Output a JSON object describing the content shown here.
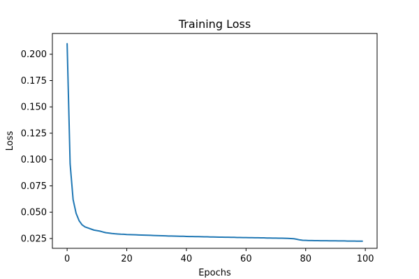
{
  "chart_data": {
    "type": "line",
    "title": "Training Loss",
    "xlabel": "Epochs",
    "ylabel": "Loss",
    "xlim": [
      -4.95,
      103.95
    ],
    "ylim": [
      0.0157,
      0.2197
    ],
    "xticks": [
      0,
      20,
      40,
      60,
      80,
      100
    ],
    "yticks": [
      0.025,
      0.05,
      0.075,
      0.1,
      0.125,
      0.15,
      0.175,
      0.2
    ],
    "ytick_labels": [
      "0.025",
      "0.050",
      "0.075",
      "0.100",
      "0.125",
      "0.150",
      "0.175",
      "0.200"
    ],
    "grid": false,
    "series": [
      {
        "color": "#1f77b4",
        "x": [
          0,
          1,
          2,
          3,
          4,
          5,
          6,
          7,
          8,
          9,
          10,
          11,
          12,
          13,
          14,
          15,
          16,
          17,
          18,
          19,
          20,
          21,
          22,
          23,
          24,
          25,
          26,
          27,
          28,
          29,
          30,
          31,
          32,
          33,
          34,
          35,
          36,
          37,
          38,
          39,
          40,
          41,
          42,
          43,
          44,
          45,
          46,
          47,
          48,
          49,
          50,
          51,
          52,
          53,
          54,
          55,
          56,
          57,
          58,
          59,
          60,
          61,
          62,
          63,
          64,
          65,
          66,
          67,
          68,
          69,
          70,
          71,
          72,
          73,
          74,
          75,
          76,
          77,
          78,
          79,
          80,
          81,
          82,
          83,
          84,
          85,
          86,
          87,
          88,
          89,
          90,
          91,
          92,
          93,
          94,
          95,
          96,
          97,
          98,
          99
        ],
        "values": [
          0.21,
          0.096,
          0.062,
          0.049,
          0.042,
          0.038,
          0.036,
          0.035,
          0.034,
          0.033,
          0.0325,
          0.032,
          0.0312,
          0.0305,
          0.0302,
          0.0298,
          0.0295,
          0.0293,
          0.0291,
          0.029,
          0.0288,
          0.0287,
          0.0286,
          0.0285,
          0.0284,
          0.0283,
          0.0282,
          0.0281,
          0.028,
          0.0279,
          0.0278,
          0.0277,
          0.0276,
          0.0275,
          0.0274,
          0.0274,
          0.0273,
          0.0272,
          0.0271,
          0.0271,
          0.027,
          0.0269,
          0.0269,
          0.0268,
          0.0268,
          0.0267,
          0.0266,
          0.0266,
          0.0265,
          0.0265,
          0.0264,
          0.0263,
          0.0263,
          0.0262,
          0.0262,
          0.0261,
          0.0261,
          0.026,
          0.026,
          0.0259,
          0.0259,
          0.0258,
          0.0258,
          0.0257,
          0.0257,
          0.0256,
          0.0256,
          0.0255,
          0.0255,
          0.0254,
          0.0254,
          0.0253,
          0.0253,
          0.0252,
          0.0251,
          0.025,
          0.0248,
          0.0243,
          0.0237,
          0.0233,
          0.0232,
          0.0231,
          0.0231,
          0.023,
          0.023,
          0.0229,
          0.0229,
          0.0229,
          0.0228,
          0.0228,
          0.0228,
          0.0227,
          0.0227,
          0.0227,
          0.0226,
          0.0226,
          0.0226,
          0.0225,
          0.0225,
          0.0225
        ]
      }
    ]
  }
}
